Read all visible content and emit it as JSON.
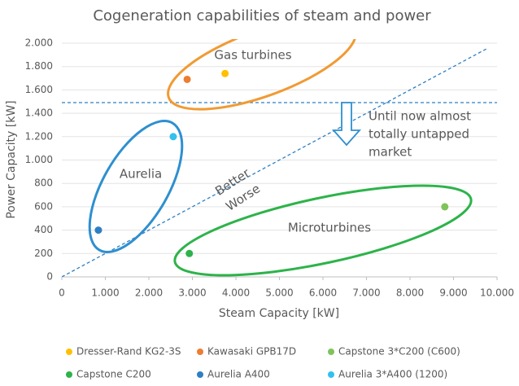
{
  "chart_data": {
    "type": "scatter",
    "title": "Cogeneration capabilities of steam and power",
    "x_label": "Steam Capacity [kW]",
    "y_label": "Power Capacity [kW]",
    "xlim": [
      0,
      10000
    ],
    "xticks": [
      0,
      {
        "value": 1000,
        "label": "1.000"
      },
      {
        "value": 2000,
        "label": "2.000"
      },
      {
        "value": 3000,
        "label": "3.000"
      },
      {
        "value": 4000,
        "label": "4.000"
      },
      {
        "value": 5000,
        "label": "5.000"
      },
      {
        "value": 6000,
        "label": "6.000"
      },
      {
        "value": 7000,
        "label": "7.000"
      },
      {
        "value": 8000,
        "label": "8.000"
      },
      {
        "value": 9000,
        "label": "9.000"
      },
      {
        "value": 10000,
        "label": "10.000"
      }
    ],
    "ylim": [
      0,
      2000
    ],
    "yticks": [
      0,
      200,
      400,
      600,
      800,
      {
        "value": 1000,
        "label": "1.000"
      },
      {
        "value": 1200,
        "label": "1.200"
      },
      {
        "value": 1400,
        "label": "1.400"
      },
      {
        "value": 1600,
        "label": "1.600"
      },
      {
        "value": 1800,
        "label": "1.800"
      },
      {
        "value": 2000,
        "label": "2.000"
      }
    ],
    "grid": true,
    "series": [
      {
        "name": "Dresser-Rand KG2-3S",
        "color": "#ffc000",
        "x": [
          3750
        ],
        "values": [
          1740
        ]
      },
      {
        "name": "Kawasaki GPB17D",
        "color": "#ed7d31",
        "x": [
          2880
        ],
        "values": [
          1690
        ]
      },
      {
        "name": "Capstone 3*C200 (C600)",
        "color": "#7fc35a",
        "x": [
          8800
        ],
        "values": [
          600
        ]
      },
      {
        "name": "Capstone C200",
        "color": "#2db34a",
        "x": [
          2930
        ],
        "values": [
          200
        ]
      },
      {
        "name": "Aurelia A400",
        "color": "#2e7fc4",
        "x": [
          840
        ],
        "values": [
          400
        ]
      },
      {
        "name": "Aurelia 3*A400 (1200)",
        "color": "#33c0ee",
        "x": [
          2560
        ],
        "values": [
          1200
        ]
      }
    ],
    "annotations": [
      "Gas turbines",
      "Aurelia",
      "Microturbines",
      "Better",
      "Worse",
      "Until now almost",
      "totally untapped",
      "market"
    ]
  }
}
